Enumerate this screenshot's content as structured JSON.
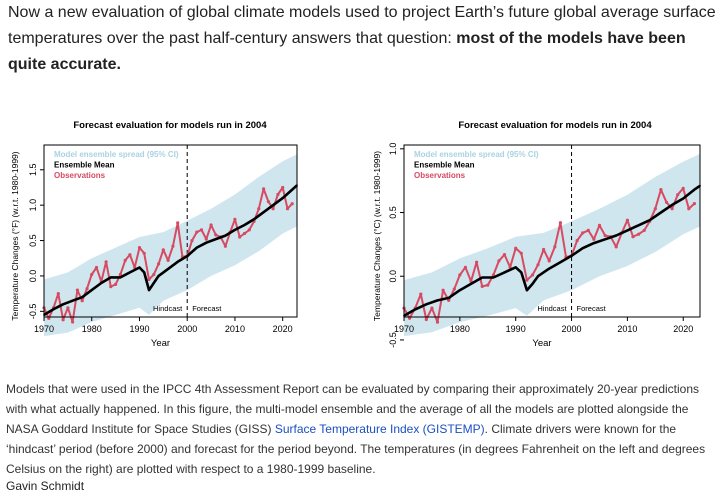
{
  "article": {
    "lead_plain": "Now a new evaluation of global climate models used to project Earth’s future global average surface temperatures over the past half-century answers that question: ",
    "lead_bold": "most of the models have been quite accurate."
  },
  "caption": {
    "text_before": "Models that were used in the IPCC 4th Assessment Report can be evaluated by comparing their approximately 20-year predictions with what actually happened. In this figure, the multi-model ensemble and the average of all the models are plotted alongside the NASA Goddard Institute for Space Studies (GISS) ",
    "link": "Surface Temperature Index (GISTEMP)",
    "text_after": ". Climate drivers were known for the ‘hindcast’ period (before 2000) and forecast for the period beyond. The temperatures (in degrees Fahrenheit on the left and degrees Celsius on the right) are plotted with respect to a 1980-1999 baseline.",
    "credit": "Gavin Schmidt"
  },
  "colors": {
    "spread": "#cfe6ef",
    "ensemble": "#000000",
    "observations": "#d64b62",
    "legend_spread": "#a9d2e1",
    "link": "#1a4fc4"
  },
  "chart_data": [
    {
      "type": "line",
      "title": "Forecast evaluation for models run in 2004",
      "xlabel": "Year",
      "ylabel": "Temperature Changes (°F) (w.r.t. 1980-1999)",
      "xlim": [
        1970,
        2023
      ],
      "ylim": [
        -0.58,
        1.85
      ],
      "xticks": [
        1970,
        1980,
        1990,
        2000,
        2010,
        2020
      ],
      "yticks": [
        -0.5,
        0.0,
        0.5,
        1.0,
        1.5
      ],
      "ytick_labels": [
        "-0.5",
        "0.0",
        "0.5",
        "1.0",
        "1.5"
      ],
      "legend": [
        "Model ensemble spread (95% CI)",
        "Ensemble Mean",
        "Observations"
      ],
      "divider_year": 2000,
      "period_labels": [
        "Hindcast",
        "Forecast"
      ],
      "ensemble_mean": {
        "x": [
          1970,
          1972,
          1974,
          1976,
          1978,
          1980,
          1982,
          1984,
          1986,
          1988,
          1990,
          1991,
          1992,
          1993,
          1994,
          1996,
          1998,
          2000,
          2002,
          2004,
          2006,
          2008,
          2010,
          2012,
          2014,
          2016,
          2018,
          2020,
          2022,
          2023
        ],
        "values": [
          -0.55,
          -0.47,
          -0.4,
          -0.35,
          -0.3,
          -0.2,
          -0.1,
          -0.02,
          -0.02,
          0.05,
          0.12,
          0.05,
          -0.2,
          -0.1,
          0.0,
          0.1,
          0.2,
          0.28,
          0.4,
          0.47,
          0.52,
          0.57,
          0.65,
          0.72,
          0.8,
          0.9,
          1.0,
          1.1,
          1.22,
          1.28
        ]
      },
      "spread_upper": {
        "x": [
          1970,
          1975,
          1980,
          1985,
          1990,
          1995,
          2000,
          2005,
          2010,
          2015,
          2020,
          2023
        ],
        "values": [
          -0.05,
          0.05,
          0.25,
          0.4,
          0.55,
          0.62,
          0.78,
          0.95,
          1.15,
          1.4,
          1.62,
          1.72
        ]
      },
      "spread_lower": {
        "x": [
          1970,
          1975,
          1980,
          1985,
          1990,
          1992,
          1995,
          2000,
          2005,
          2010,
          2015,
          2020,
          2023
        ],
        "values": [
          -0.85,
          -0.8,
          -0.65,
          -0.55,
          -0.45,
          -0.55,
          -0.35,
          -0.2,
          0.0,
          0.15,
          0.35,
          0.6,
          0.7
        ]
      },
      "observations": {
        "x": [
          1970,
          1971,
          1972,
          1973,
          1974,
          1975,
          1976,
          1977,
          1978,
          1979,
          1980,
          1981,
          1982,
          1983,
          1984,
          1985,
          1986,
          1987,
          1988,
          1989,
          1990,
          1991,
          1992,
          1993,
          1994,
          1995,
          1996,
          1997,
          1998,
          1999,
          2000,
          2001,
          2002,
          2003,
          2004,
          2005,
          2006,
          2007,
          2008,
          2009,
          2010,
          2011,
          2012,
          2013,
          2014,
          2015,
          2016,
          2017,
          2018,
          2019,
          2020,
          2021,
          2022
        ],
        "values": [
          -0.45,
          -0.6,
          -0.45,
          -0.25,
          -0.62,
          -0.45,
          -0.65,
          -0.2,
          -0.35,
          -0.18,
          0.02,
          0.12,
          -0.08,
          0.2,
          -0.15,
          -0.12,
          0.02,
          0.22,
          0.3,
          0.12,
          0.4,
          0.32,
          -0.05,
          0.02,
          0.17,
          0.37,
          0.22,
          0.42,
          0.75,
          0.27,
          0.28,
          0.5,
          0.62,
          0.65,
          0.52,
          0.72,
          0.58,
          0.55,
          0.42,
          0.62,
          0.8,
          0.55,
          0.6,
          0.65,
          0.77,
          0.95,
          1.23,
          1.05,
          0.95,
          1.15,
          1.25,
          0.95,
          1.02
        ]
      }
    },
    {
      "type": "line",
      "title": "Forecast evaluation for models run in 2004",
      "xlabel": "Year",
      "ylabel": "Temperature Changes (°C) (w.r.t. 1980-1999)",
      "xlim": [
        1970,
        2023
      ],
      "ylim": [
        -0.32,
        1.03
      ],
      "xticks": [
        1970,
        1980,
        1990,
        2000,
        2010,
        2020
      ],
      "yticks": [
        -0.5,
        0.0,
        0.5,
        1.0
      ],
      "ytick_labels": [
        "-0.5",
        "0.0",
        "0.5",
        "1.0"
      ],
      "legend": [
        "Model ensemble spread (95% CI)",
        "Ensemble Mean",
        "Observations"
      ],
      "divider_year": 2000,
      "period_labels": [
        "Hindcast",
        "Forecast"
      ],
      "ensemble_mean": {
        "x": [
          1970,
          1972,
          1974,
          1976,
          1978,
          1980,
          1982,
          1984,
          1986,
          1988,
          1990,
          1991,
          1992,
          1993,
          1994,
          1996,
          1998,
          2000,
          2002,
          2004,
          2006,
          2008,
          2010,
          2012,
          2014,
          2016,
          2018,
          2020,
          2022,
          2023
        ],
        "values": [
          -0.31,
          -0.26,
          -0.22,
          -0.19,
          -0.17,
          -0.11,
          -0.06,
          -0.01,
          -0.01,
          0.03,
          0.07,
          0.03,
          -0.11,
          -0.06,
          0.0,
          0.06,
          0.11,
          0.16,
          0.22,
          0.26,
          0.29,
          0.32,
          0.36,
          0.4,
          0.44,
          0.5,
          0.56,
          0.61,
          0.68,
          0.71
        ]
      },
      "spread_upper": {
        "x": [
          1970,
          1975,
          1980,
          1985,
          1990,
          1995,
          2000,
          2005,
          2010,
          2015,
          2020,
          2023
        ],
        "values": [
          -0.03,
          0.03,
          0.14,
          0.22,
          0.31,
          0.34,
          0.43,
          0.53,
          0.64,
          0.78,
          0.9,
          0.96
        ]
      },
      "spread_lower": {
        "x": [
          1970,
          1975,
          1980,
          1985,
          1990,
          1992,
          1995,
          2000,
          2005,
          2010,
          2015,
          2020,
          2023
        ],
        "values": [
          -0.47,
          -0.44,
          -0.36,
          -0.31,
          -0.25,
          -0.31,
          -0.19,
          -0.11,
          0.0,
          0.08,
          0.19,
          0.33,
          0.39
        ]
      },
      "observations": {
        "x": [
          1970,
          1971,
          1972,
          1973,
          1974,
          1975,
          1976,
          1977,
          1978,
          1979,
          1980,
          1981,
          1982,
          1983,
          1984,
          1985,
          1986,
          1987,
          1988,
          1989,
          1990,
          1991,
          1992,
          1993,
          1994,
          1995,
          1996,
          1997,
          1998,
          1999,
          2000,
          2001,
          2002,
          2003,
          2004,
          2005,
          2006,
          2007,
          2008,
          2009,
          2010,
          2011,
          2012,
          2013,
          2014,
          2015,
          2016,
          2017,
          2018,
          2019,
          2020,
          2021,
          2022
        ],
        "values": [
          -0.25,
          -0.33,
          -0.25,
          -0.14,
          -0.34,
          -0.25,
          -0.36,
          -0.11,
          -0.19,
          -0.1,
          0.01,
          0.07,
          -0.04,
          0.11,
          -0.08,
          -0.07,
          0.01,
          0.12,
          0.17,
          0.07,
          0.22,
          0.18,
          -0.03,
          0.01,
          0.09,
          0.21,
          0.12,
          0.23,
          0.42,
          0.15,
          0.16,
          0.28,
          0.34,
          0.36,
          0.29,
          0.4,
          0.32,
          0.31,
          0.23,
          0.34,
          0.44,
          0.31,
          0.33,
          0.36,
          0.43,
          0.53,
          0.68,
          0.58,
          0.53,
          0.64,
          0.69,
          0.53,
          0.57
        ]
      }
    }
  ]
}
